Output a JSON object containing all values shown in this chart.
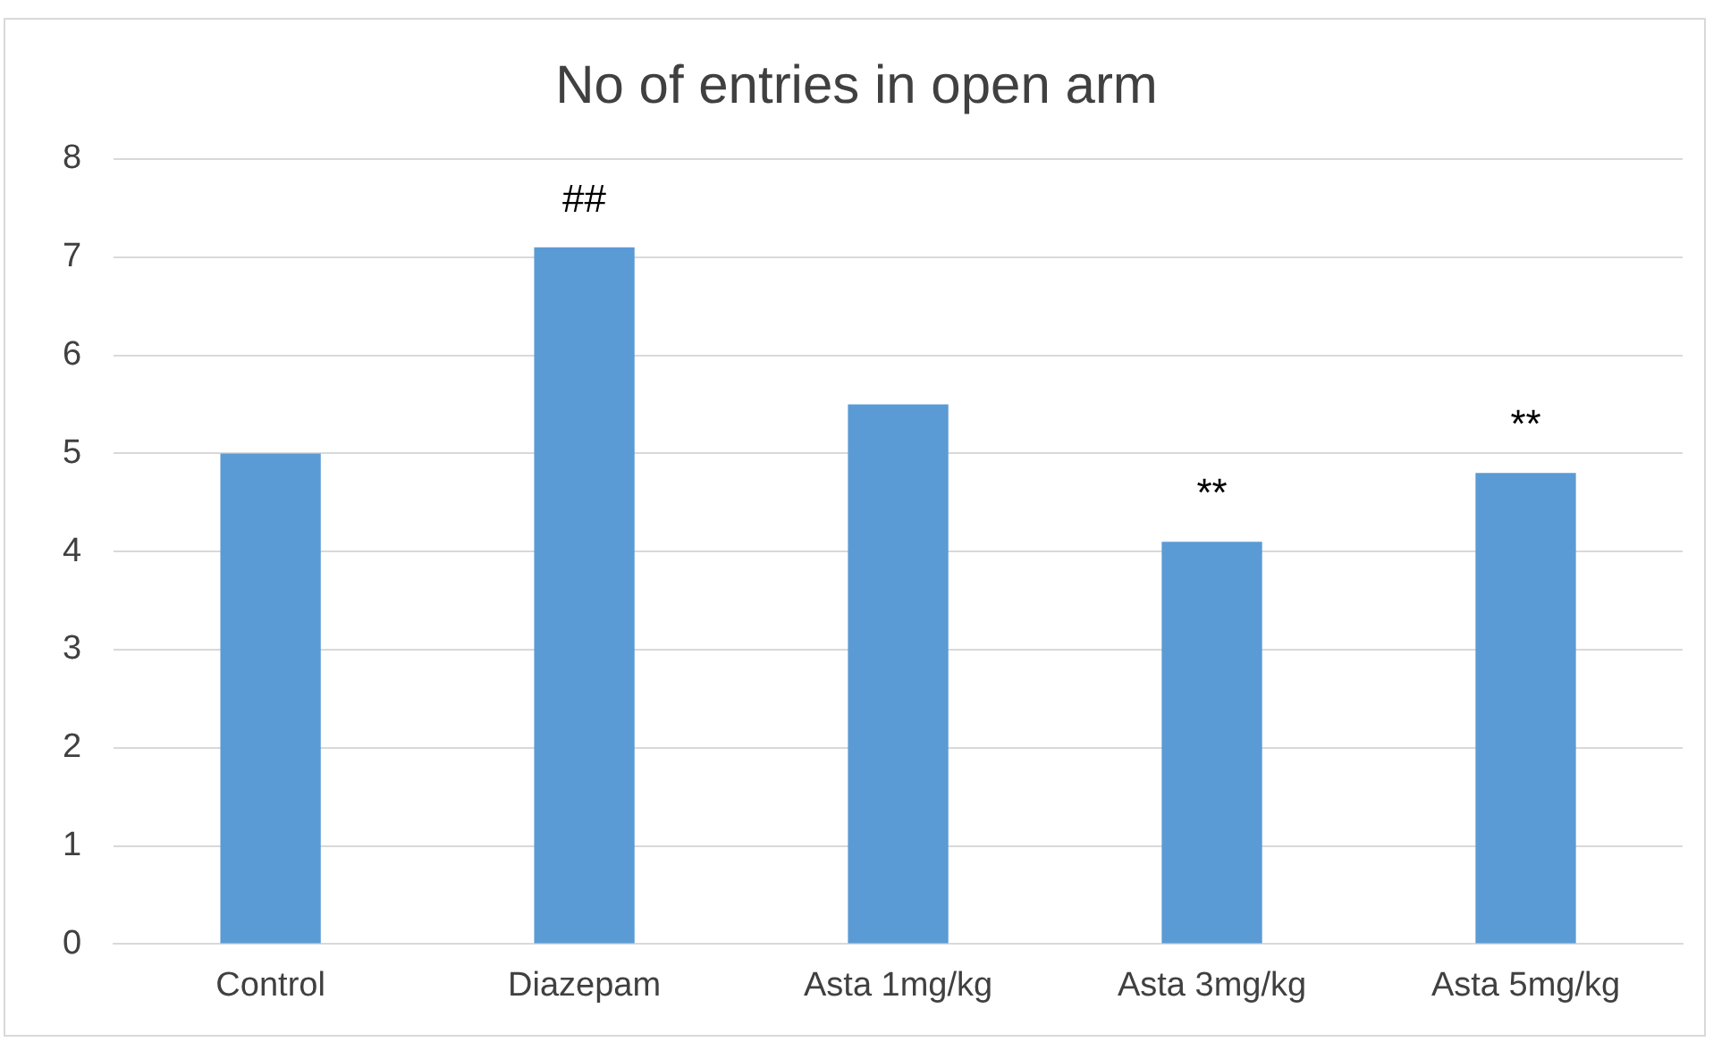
{
  "chart_data": {
    "type": "bar",
    "title": "No of entries in open arm",
    "categories": [
      "Control",
      "Diazepam",
      "Asta 1mg/kg",
      "Asta 3mg/kg",
      "Asta 5mg/kg"
    ],
    "values": [
      5.0,
      7.1,
      5.5,
      4.1,
      4.8
    ],
    "color": "#5b9bd5",
    "ylim": [
      0,
      8
    ],
    "yticks": [
      0,
      1,
      2,
      3,
      4,
      5,
      6,
      7,
      8
    ],
    "grid": "y",
    "legend": false,
    "annotations": [
      {
        "text": "##",
        "x": "Diazepam",
        "y": 7.1
      },
      {
        "text": "**",
        "x": "Asta 3mg/kg",
        "y": 4.1
      },
      {
        "text": "**",
        "x": "Asta 5mg/kg",
        "y": 4.8
      }
    ]
  }
}
